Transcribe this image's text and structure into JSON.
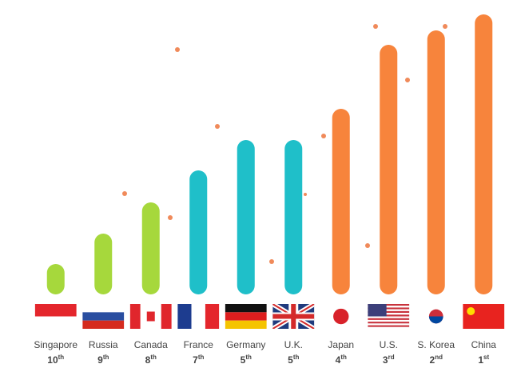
{
  "chart_data": {
    "type": "bar",
    "categories": [
      "Singapore",
      "Russia",
      "Canada",
      "France",
      "Germany",
      "U.K.",
      "Japan",
      "U.S.",
      "S. Korea",
      "China"
    ],
    "rank_numbers": [
      "10",
      "9",
      "8",
      "7",
      "5",
      "5",
      "4",
      "3",
      "2",
      "1"
    ],
    "rank_suffixes": [
      "th",
      "th",
      "th",
      "th",
      "th",
      "th",
      "th",
      "rd",
      "nd",
      "st"
    ],
    "values": [
      38,
      76,
      115,
      155,
      193,
      193,
      232,
      312,
      330,
      350
    ],
    "colors": [
      "#a6d83c",
      "#a6d83c",
      "#a6d83c",
      "#1fbfc9",
      "#1fbfc9",
      "#1fbfc9",
      "#f7843c",
      "#f7843c",
      "#f7843c",
      "#f7843c"
    ],
    "ylim": [
      0,
      360
    ]
  }
}
